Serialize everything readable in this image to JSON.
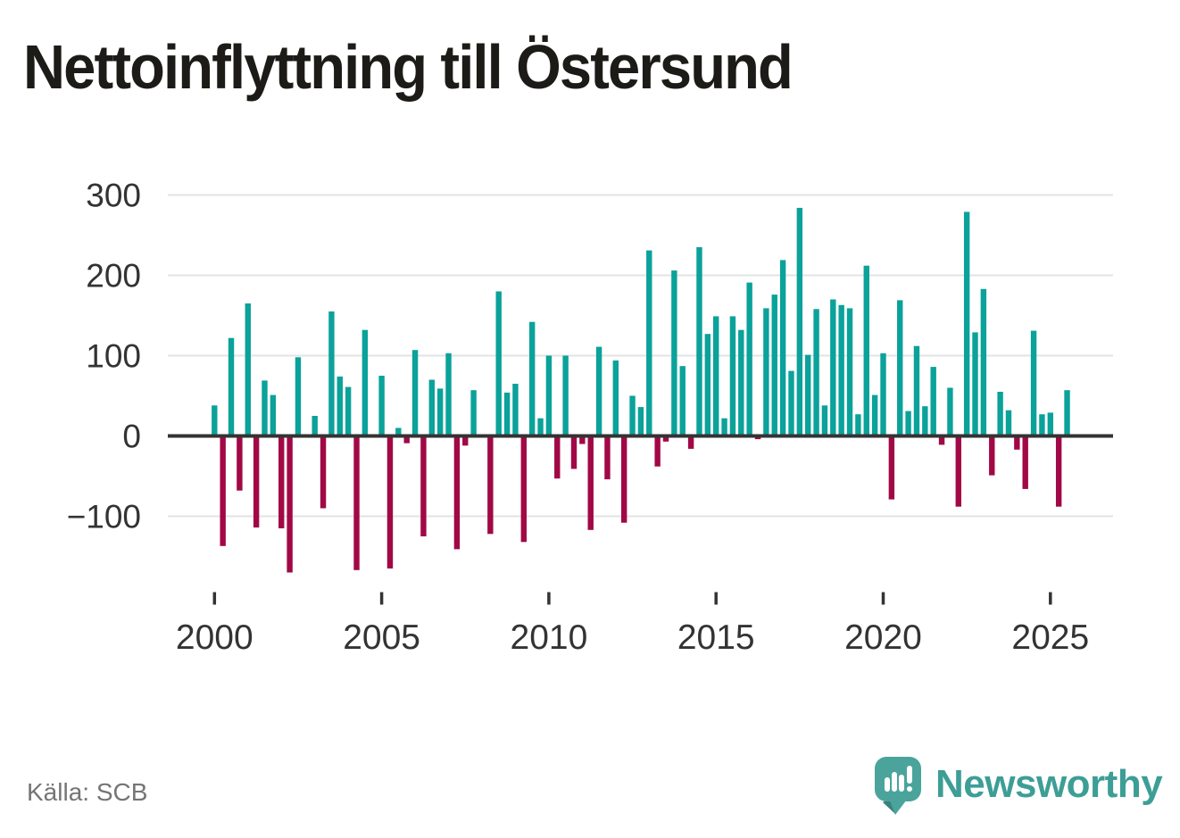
{
  "page": {
    "title": "Nettoinflyttning till Östersund",
    "source_note": "Källa: SCB",
    "brand": {
      "name": "Newsworthy",
      "icon": "speech-bubble-bar-chart-icon"
    }
  },
  "colors": {
    "positive_bar": "#0aa29a",
    "negative_bar": "#a10845",
    "gridline": "#e3e3e3",
    "zero_line": "#333333",
    "axis_text": "#333333",
    "title_text": "#1c1b17",
    "source_text": "#757575",
    "brand_teal": "#3d9e96",
    "logo_fill": "#4aa49c",
    "logo_fill_dark": "#38837c",
    "background": "#ffffff"
  },
  "chart_data": {
    "type": "bar",
    "title": "Nettoinflyttning till Östersund",
    "frequency": "quarterly",
    "start": "2000-Q1",
    "end": "2025-Q3",
    "values": [
      38,
      -137,
      122,
      -68,
      165,
      -114,
      69,
      51,
      -115,
      -170,
      98,
      0,
      25,
      -90,
      155,
      74,
      61,
      -167,
      132,
      0,
      75,
      -165,
      10,
      -9,
      107,
      -125,
      70,
      59,
      103,
      -141,
      -12,
      57,
      0,
      -122,
      180,
      54,
      65,
      -132,
      142,
      22,
      100,
      -53,
      100,
      -41,
      -10,
      -117,
      111,
      -54,
      94,
      -108,
      50,
      36,
      231,
      -38,
      -7,
      206,
      87,
      -16,
      235,
      127,
      149,
      22,
      149,
      132,
      191,
      -4,
      159,
      176,
      219,
      81,
      284,
      101,
      158,
      38,
      170,
      163,
      159,
      27,
      212,
      51,
      103,
      -79,
      169,
      31,
      112,
      37,
      86,
      -11,
      60,
      -88,
      279,
      129,
      183,
      -49,
      55,
      32,
      -17,
      -66,
      131,
      27,
      29,
      -88,
      57
    ],
    "xticks": [
      2000,
      2005,
      2010,
      2015,
      2020,
      2025
    ],
    "ytick_values": [
      300,
      200,
      100,
      0,
      -100
    ],
    "ytick_labels": [
      "300",
      "200",
      "100",
      "0",
      "−100"
    ],
    "ylim": [
      -185,
      315
    ],
    "grid": "horizontal-only",
    "legend": "none",
    "positive_color": "#0aa29a",
    "negative_color": "#a10845"
  }
}
